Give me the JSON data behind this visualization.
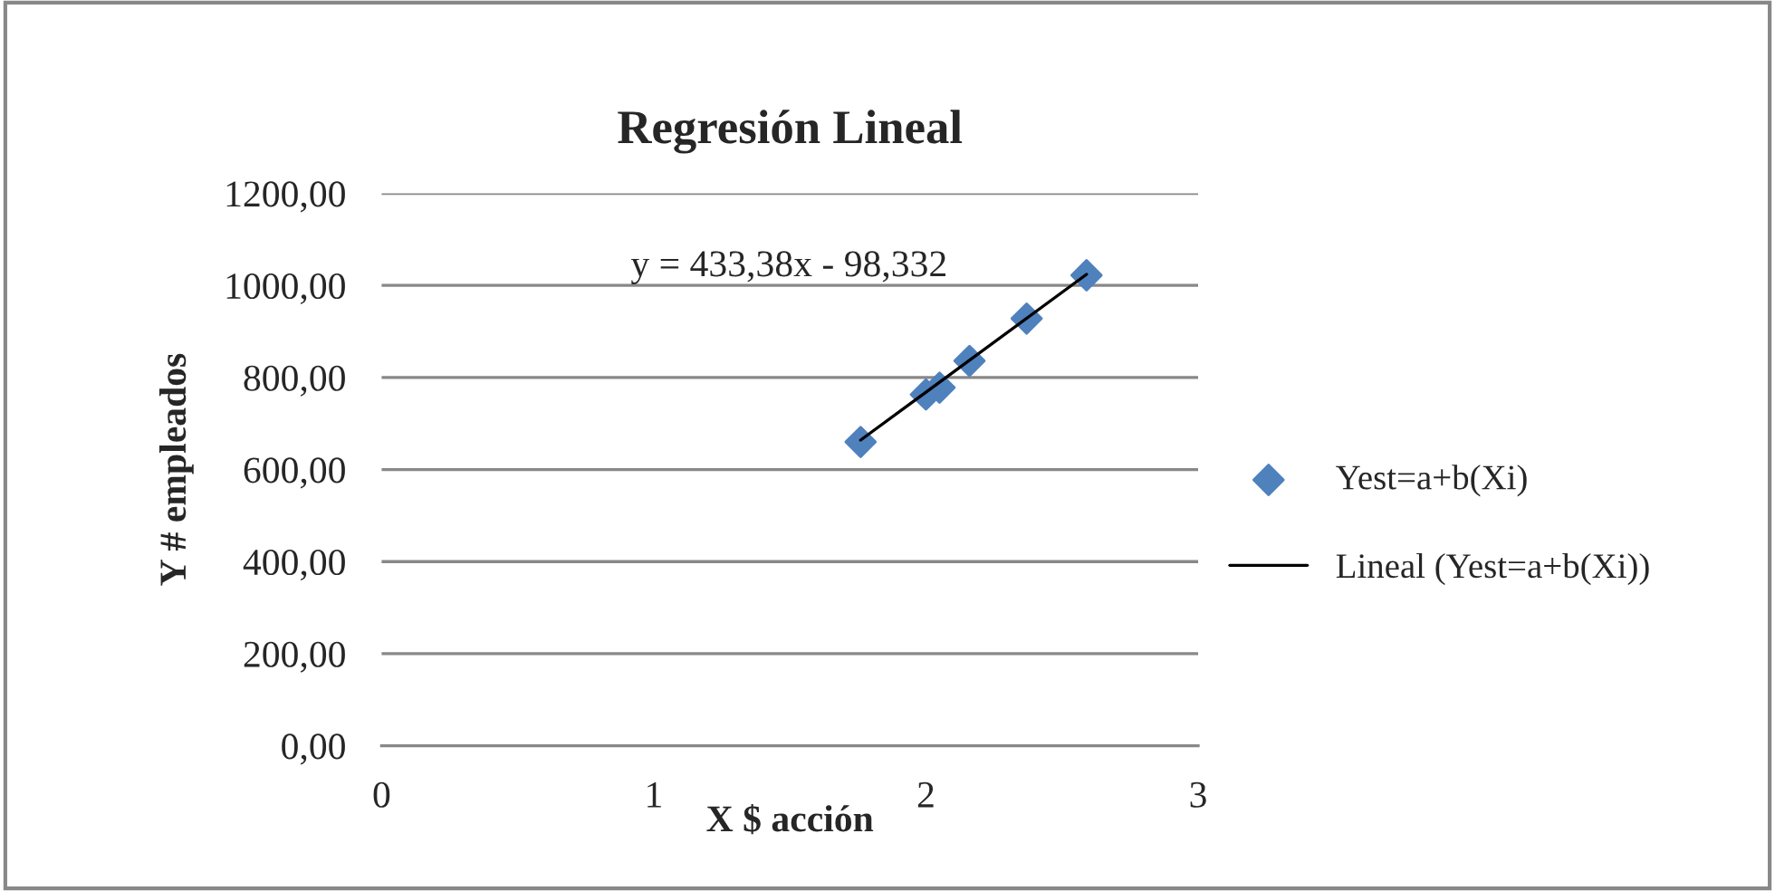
{
  "chart_data": {
    "type": "scatter",
    "title": "Regresión Lineal",
    "xlabel": "X $ acción",
    "ylabel": "Y # empleados",
    "series": [
      {
        "name": "Yest=a+b(Xi)",
        "color": "#4f81bd",
        "marker": "diamond",
        "x": [
          1.76,
          2.0,
          2.05,
          2.16,
          2.37,
          2.59
        ],
        "values": [
          660,
          763,
          778,
          836,
          928,
          1022
        ]
      },
      {
        "name": "Lineal (Yest=a+b(Xi))",
        "type": "line",
        "color": "#000000",
        "line_style": "solid",
        "x": [
          1.76,
          2.59
        ],
        "values": [
          664,
          1024
        ]
      }
    ],
    "annotations": [
      "y = 433,38x - 98,332"
    ],
    "xlim": [
      0,
      3
    ],
    "xticks": [
      0,
      1,
      2,
      3
    ],
    "ylim": [
      0,
      1200
    ],
    "yticks": [
      {
        "value": 0,
        "label": "0,00"
      },
      {
        "value": 200,
        "label": "200,00"
      },
      {
        "value": 400,
        "label": "400,00"
      },
      {
        "value": 600,
        "label": "600,00"
      },
      {
        "value": 800,
        "label": "800,00"
      },
      {
        "value": 1000,
        "label": "1000,00"
      },
      {
        "value": 1200,
        "label": "1200,00"
      }
    ],
    "grid": "y",
    "legend": "right"
  }
}
